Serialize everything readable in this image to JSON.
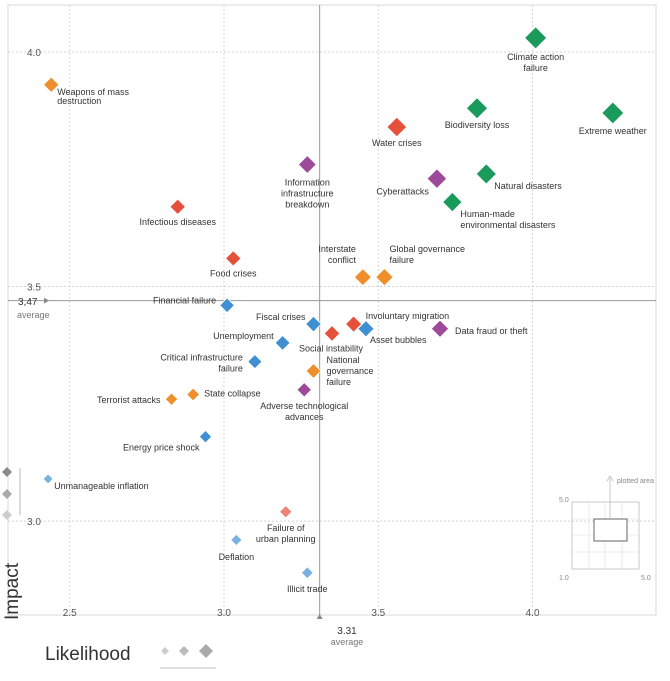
{
  "chart_data": {
    "type": "scatter",
    "xlabel": "Likelihood",
    "ylabel": "Impact",
    "xlim": [
      2.3,
      4.4
    ],
    "ylim": [
      2.8,
      4.1
    ],
    "x_ticks": [
      "2.5",
      "3.0",
      "3.5",
      "4.0"
    ],
    "y_ticks": [
      "3.0",
      "3.5",
      "4.0"
    ],
    "grid": true,
    "average": {
      "x_value": "3.31",
      "y_value": "3,47",
      "label": "average"
    },
    "category_colors": {
      "economic": "#3f8fd2",
      "environmental": "#1a9b5b",
      "geopolitical": "#ef8f2c",
      "societal": "#e5503a",
      "technological": "#9c4a99"
    },
    "inset": {
      "label": "plotted area",
      "min": "1.0",
      "max": "5.0"
    },
    "points": [
      {
        "label": "Climate action failure",
        "x": 4.01,
        "y": 4.03,
        "category": "environmental"
      },
      {
        "label": "Biodiversity loss",
        "x": 3.82,
        "y": 3.88,
        "category": "environmental"
      },
      {
        "label": "Extreme weather",
        "x": 4.26,
        "y": 3.87,
        "category": "environmental"
      },
      {
        "label": "Natural disasters",
        "x": 3.85,
        "y": 3.74,
        "category": "environmental"
      },
      {
        "label": "Human-made environmental disasters",
        "x": 3.74,
        "y": 3.68,
        "category": "environmental"
      },
      {
        "label": "Weapons of mass destruction",
        "x": 2.44,
        "y": 3.93,
        "category": "geopolitical"
      },
      {
        "label": "Water crises",
        "x": 3.56,
        "y": 3.84,
        "category": "societal"
      },
      {
        "label": "Information infrastructure breakdown",
        "x": 3.27,
        "y": 3.76,
        "category": "technological"
      },
      {
        "label": "Cyberattacks",
        "x": 3.69,
        "y": 3.73,
        "category": "technological"
      },
      {
        "label": "Infectious diseases",
        "x": 2.85,
        "y": 3.67,
        "category": "societal"
      },
      {
        "label": "Food crises",
        "x": 3.03,
        "y": 3.56,
        "category": "societal"
      },
      {
        "label": "Interstate conflict",
        "x": 3.45,
        "y": 3.52,
        "category": "geopolitical"
      },
      {
        "label": "Global governance failure",
        "x": 3.52,
        "y": 3.52,
        "category": "geopolitical"
      },
      {
        "label": "Financial failure",
        "x": 3.01,
        "y": 3.46,
        "category": "economic"
      },
      {
        "label": "Fiscal crises",
        "x": 3.29,
        "y": 3.42,
        "category": "economic"
      },
      {
        "label": "Involuntary migration",
        "x": 3.42,
        "y": 3.42,
        "category": "societal"
      },
      {
        "label": "Asset bubbles",
        "x": 3.46,
        "y": 3.41,
        "category": "economic"
      },
      {
        "label": "Data fraud or theft",
        "x": 3.7,
        "y": 3.41,
        "category": "technological"
      },
      {
        "label": "Social instability",
        "x": 3.35,
        "y": 3.4,
        "category": "societal"
      },
      {
        "label": "Unemployment",
        "x": 3.19,
        "y": 3.38,
        "category": "economic"
      },
      {
        "label": "Critical infrastructure failure",
        "x": 3.1,
        "y": 3.34,
        "category": "economic"
      },
      {
        "label": "National governance failure",
        "x": 3.29,
        "y": 3.32,
        "category": "geopolitical"
      },
      {
        "label": "Adverse technological advances",
        "x": 3.26,
        "y": 3.28,
        "category": "technological"
      },
      {
        "label": "State collapse",
        "x": 2.9,
        "y": 3.27,
        "category": "geopolitical"
      },
      {
        "label": "Terrorist attacks",
        "x": 2.83,
        "y": 3.26,
        "category": "geopolitical"
      },
      {
        "label": "Energy price shock",
        "x": 2.94,
        "y": 3.18,
        "category": "economic"
      },
      {
        "label": "Unmanageable inflation",
        "x": 2.43,
        "y": 3.09,
        "category": "economic"
      },
      {
        "label": "Failure of urban planning",
        "x": 3.2,
        "y": 3.02,
        "category": "societal"
      },
      {
        "label": "Deflation",
        "x": 3.04,
        "y": 2.96,
        "category": "economic"
      },
      {
        "label": "Illicit trade",
        "x": 3.27,
        "y": 2.89,
        "category": "economic"
      }
    ]
  }
}
